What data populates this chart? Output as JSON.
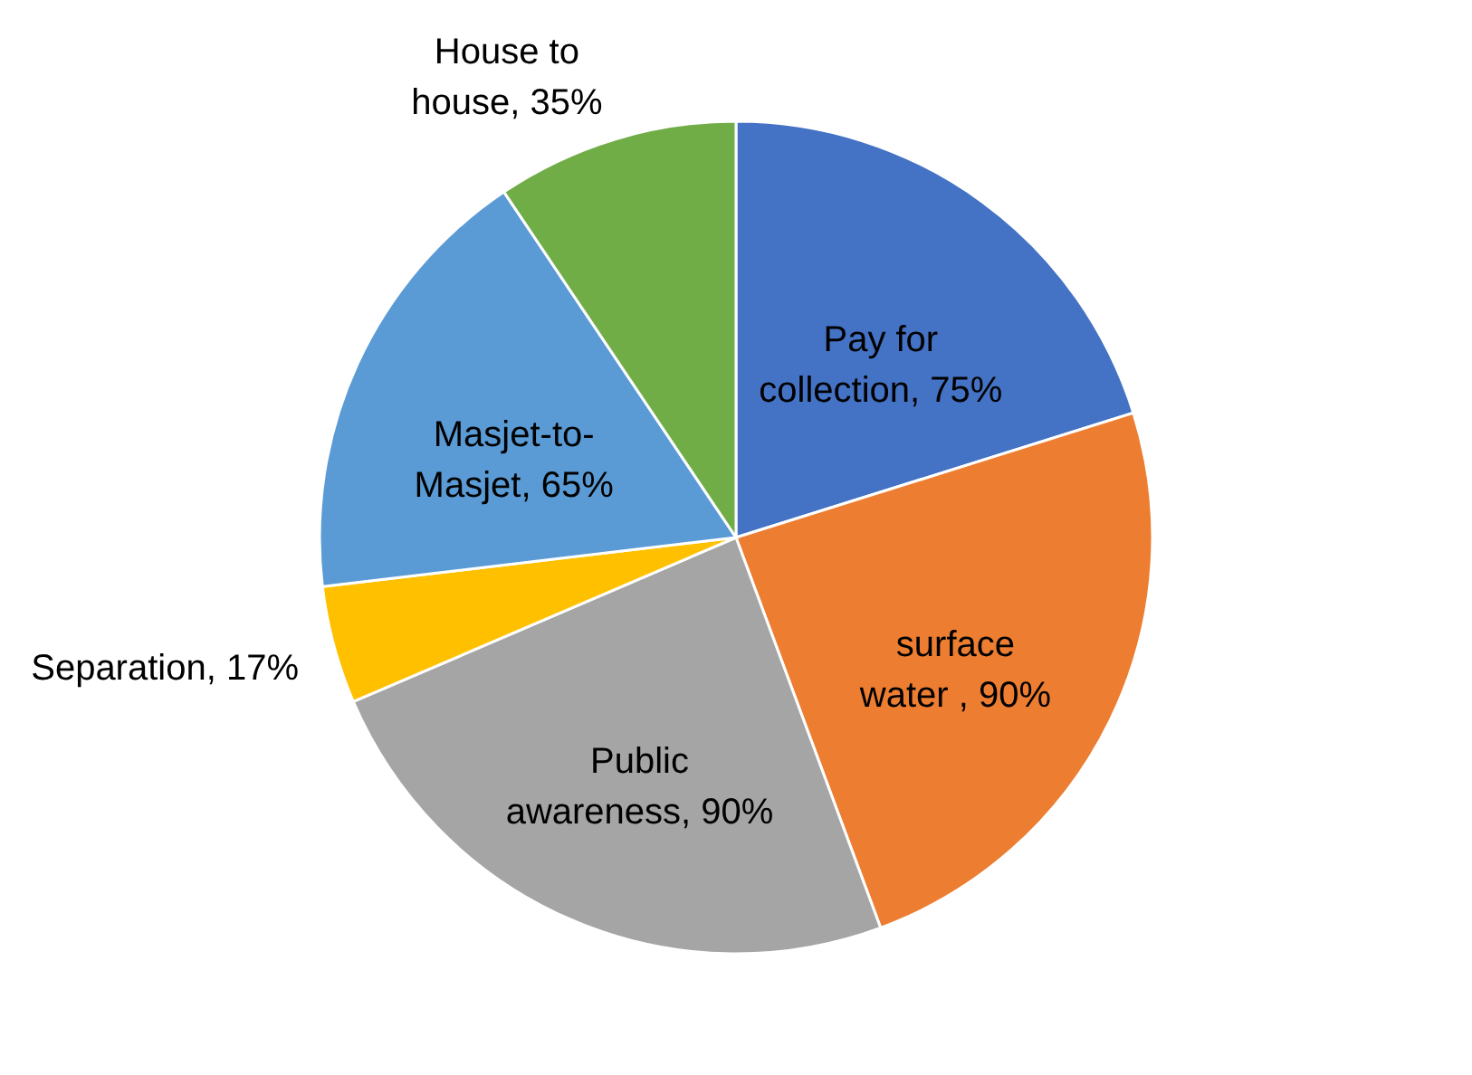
{
  "chart_data": {
    "type": "pie",
    "categories": [
      "Pay for collection",
      "surface water ",
      "Public awareness",
      "Separation",
      "Masjet-to-Masjet",
      "House to house"
    ],
    "values": [
      75,
      90,
      90,
      17,
      65,
      35
    ],
    "colors": [
      "#4472c4",
      "#ed7d31",
      "#a5a5a5",
      "#ffc000",
      "#5b9bd5",
      "#70ad47"
    ],
    "value_labels": [
      "75%",
      "90%",
      "90%",
      "17%",
      "65%",
      "35%"
    ]
  }
}
